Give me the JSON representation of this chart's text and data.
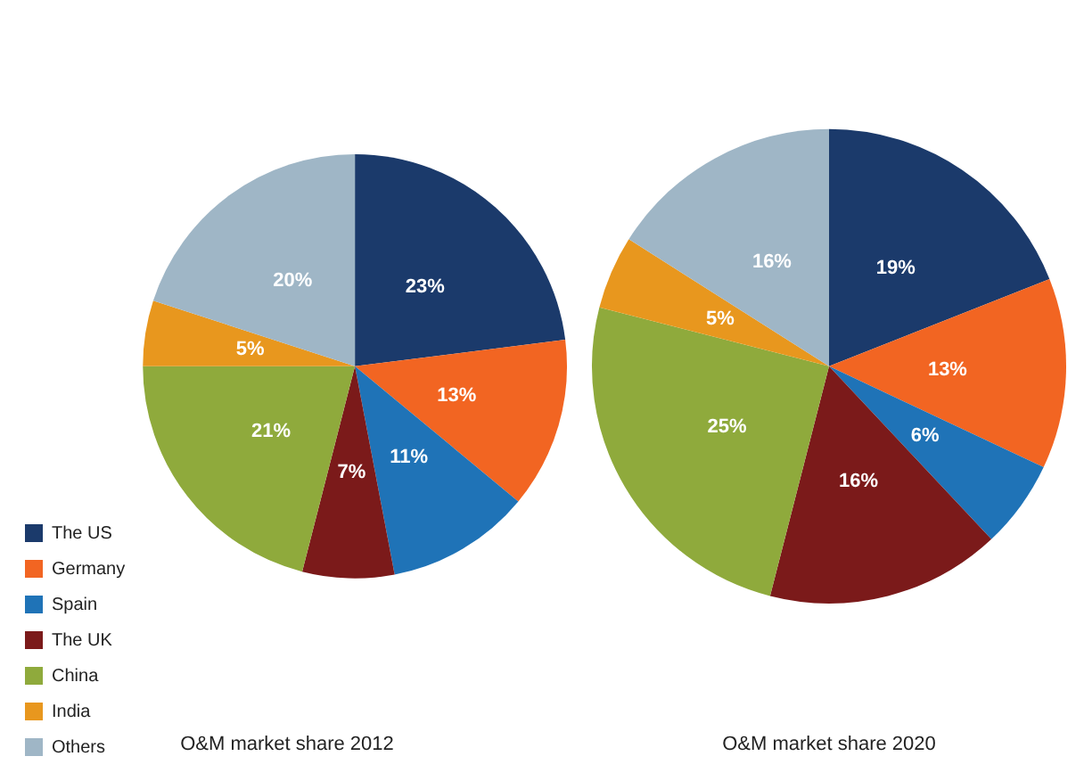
{
  "chart_data": [
    {
      "type": "pie",
      "title": "O&M market share 2012",
      "categories": [
        "The US",
        "Germany",
        "Spain",
        "The UK",
        "China",
        "India",
        "Others"
      ],
      "values": [
        23,
        13,
        11,
        7,
        21,
        5,
        20
      ],
      "value_labels": [
        "23%",
        "13%",
        "11%",
        "7%",
        "21%",
        "5%",
        "20%"
      ],
      "colors": [
        "#1b3a6b",
        "#f26522",
        "#1f73b7",
        "#7b1a1a",
        "#8faa3c",
        "#e8971e",
        "#9fb6c6"
      ],
      "legend": "bottom left"
    },
    {
      "type": "pie",
      "title": "O&M market share 2020",
      "categories": [
        null,
        null,
        null,
        null,
        null,
        null,
        null
      ],
      "values": [
        19,
        13,
        6,
        16,
        25,
        5,
        16
      ],
      "value_labels": [
        "19%",
        "13%",
        "6%",
        "16%",
        "25%",
        "5%",
        "16%"
      ],
      "colors": [
        "#1b3a6b",
        "#f26522",
        "#1f73b7",
        "#7b1a1a",
        "#8faa3c",
        "#e8971e",
        "#9fb6c6"
      ]
    }
  ]
}
